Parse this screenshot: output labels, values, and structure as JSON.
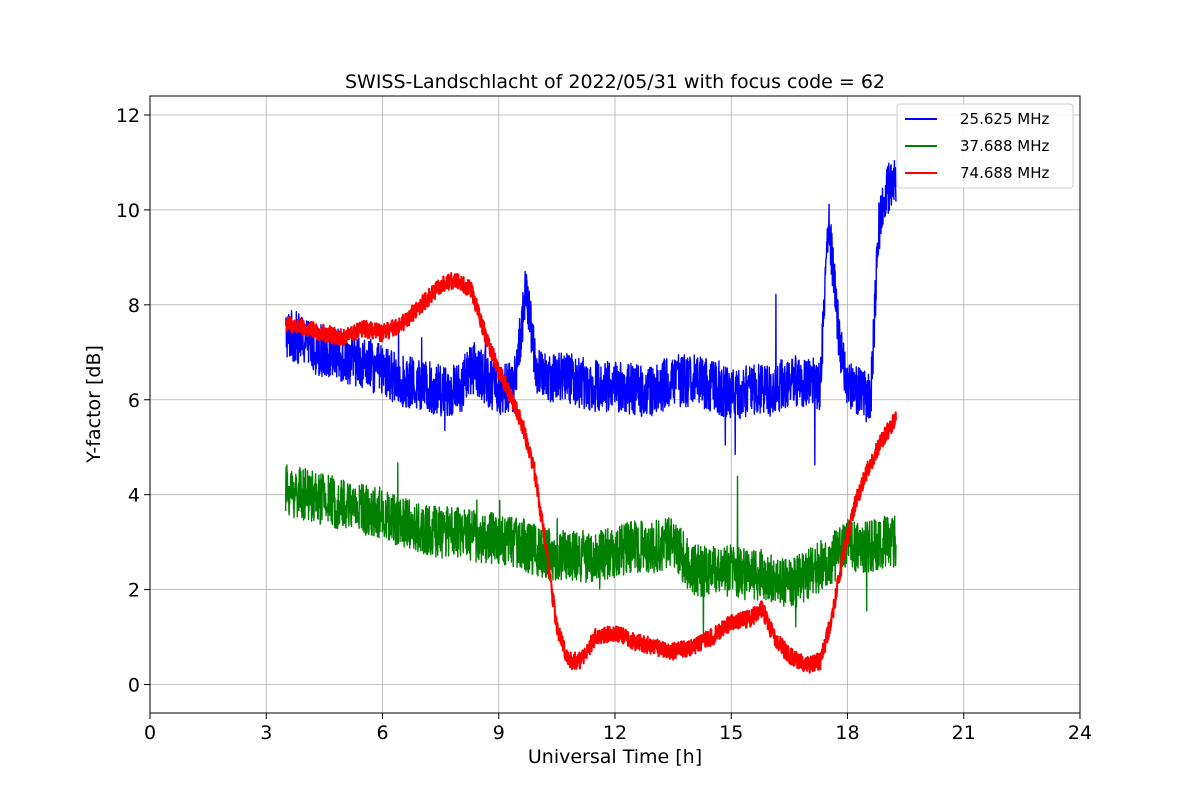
{
  "chart_data": {
    "type": "line",
    "title": "SWISS-Landschlacht of 2022/05/31 with focus code = 62",
    "xlabel": "Universal Time [h]",
    "ylabel": "Y-factor [dB]",
    "xlim": [
      0,
      24
    ],
    "ylim": [
      -0.6,
      12.4
    ],
    "xticks": [
      0,
      3,
      6,
      9,
      12,
      15,
      18,
      21,
      24
    ],
    "yticks": [
      0,
      2,
      4,
      6,
      8,
      10,
      12
    ],
    "xtick_labels": [
      "0",
      "3",
      "6",
      "9",
      "12",
      "15",
      "18",
      "21",
      "24"
    ],
    "ytick_labels": [
      "0",
      "2",
      "4",
      "6",
      "8",
      "10",
      "12"
    ],
    "grid": true,
    "legend_position": "top-right",
    "series": [
      {
        "name": "25.625 MHz",
        "color": "#0000ff",
        "noise": 0.55,
        "x": [
          3.5,
          3.8,
          4.2,
          4.6,
          5.0,
          5.5,
          6.0,
          6.5,
          7.0,
          7.5,
          8.0,
          8.3,
          8.6,
          9.0,
          9.4,
          9.7,
          10.0,
          10.5,
          11.0,
          11.5,
          12.0,
          12.5,
          13.0,
          13.5,
          14.0,
          14.5,
          15.0,
          15.5,
          16.0,
          16.5,
          17.0,
          17.3,
          17.5,
          17.8,
          18.0,
          18.3,
          18.6,
          18.8,
          19.0,
          19.25
        ],
        "y": [
          7.4,
          7.3,
          7.1,
          7.0,
          6.9,
          6.8,
          6.6,
          6.4,
          6.3,
          6.2,
          6.2,
          6.7,
          6.5,
          6.2,
          6.3,
          8.3,
          6.5,
          6.5,
          6.4,
          6.3,
          6.3,
          6.2,
          6.2,
          6.4,
          6.4,
          6.3,
          6.1,
          6.2,
          6.2,
          6.4,
          6.4,
          6.3,
          9.8,
          7.2,
          6.3,
          6.2,
          6.0,
          9.6,
          10.4,
          10.7
        ]
      },
      {
        "name": "37.688 MHz",
        "color": "#008000",
        "noise": 0.55,
        "x": [
          3.5,
          4.0,
          4.5,
          5.0,
          5.5,
          6.0,
          6.5,
          7.0,
          7.5,
          8.0,
          8.5,
          9.0,
          9.5,
          10.0,
          10.5,
          11.0,
          11.5,
          12.0,
          12.5,
          13.0,
          13.5,
          14.0,
          14.5,
          15.0,
          15.5,
          16.0,
          16.5,
          17.0,
          17.5,
          18.0,
          18.5,
          19.0,
          19.25
        ],
        "y": [
          4.1,
          4.0,
          3.9,
          3.8,
          3.7,
          3.6,
          3.4,
          3.3,
          3.2,
          3.2,
          3.1,
          3.1,
          3.0,
          2.8,
          2.7,
          2.7,
          2.7,
          2.8,
          2.9,
          2.9,
          3.0,
          2.4,
          2.4,
          2.4,
          2.3,
          2.3,
          2.1,
          2.3,
          2.6,
          2.9,
          2.9,
          3.0,
          3.0
        ]
      },
      {
        "name": "74.688 MHz",
        "color": "#ff0000",
        "noise": 0.18,
        "x": [
          3.5,
          4.0,
          4.5,
          5.0,
          5.5,
          6.0,
          6.5,
          7.0,
          7.5,
          7.8,
          8.0,
          8.3,
          8.6,
          9.0,
          9.3,
          9.6,
          9.9,
          10.2,
          10.5,
          10.8,
          11.1,
          11.5,
          12.0,
          12.5,
          13.0,
          13.5,
          14.0,
          14.5,
          15.0,
          15.5,
          15.8,
          16.1,
          16.5,
          17.0,
          17.3,
          17.6,
          17.9,
          18.2,
          18.5,
          18.8,
          19.0,
          19.25
        ],
        "y": [
          7.6,
          7.5,
          7.4,
          7.3,
          7.5,
          7.4,
          7.6,
          8.0,
          8.4,
          8.5,
          8.5,
          8.3,
          7.5,
          6.6,
          6.1,
          5.5,
          4.6,
          3.0,
          1.2,
          0.5,
          0.5,
          1.0,
          1.1,
          0.9,
          0.8,
          0.7,
          0.8,
          1.0,
          1.3,
          1.4,
          1.6,
          1.0,
          0.6,
          0.4,
          0.5,
          1.4,
          2.8,
          3.8,
          4.5,
          5.0,
          5.3,
          5.6
        ]
      }
    ]
  }
}
